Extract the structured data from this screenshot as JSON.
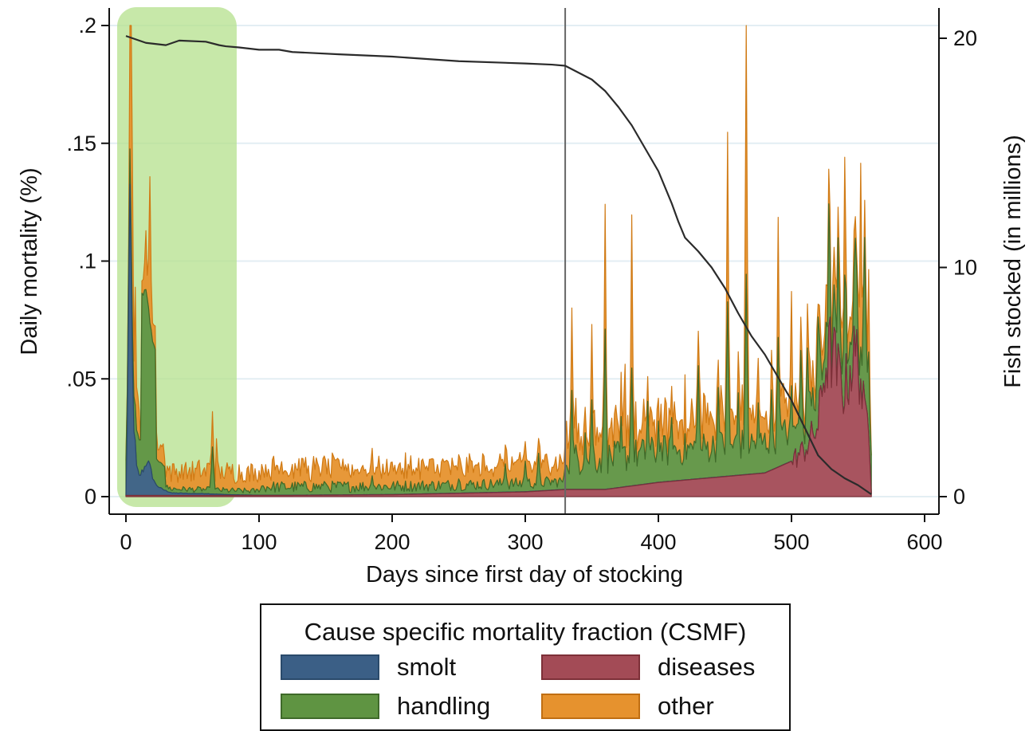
{
  "chart_data": {
    "type": "area",
    "xlabel": "Days since first day of stocking",
    "ylabel": "Daily mortality (%)",
    "y2label": "Fish stocked (in millions)",
    "xlim": [
      0,
      600
    ],
    "ylim": [
      0,
      0.2
    ],
    "y2lim": [
      0,
      20
    ],
    "xticks": [
      0,
      100,
      200,
      300,
      400,
      500,
      600
    ],
    "xtick_labels": [
      "0",
      "100",
      "200",
      "300",
      "400",
      "500",
      "600"
    ],
    "yticks": [
      0,
      0.05,
      0.1,
      0.15,
      0.2
    ],
    "ytick_labels": [
      "0",
      ".05",
      ".1",
      ".15",
      ".2"
    ],
    "y2ticks": [
      0,
      10,
      20
    ],
    "y2tick_labels": [
      "0",
      "10",
      "20"
    ],
    "grid": true,
    "stacked": true,
    "colors": {
      "smolt": "#3b5f86",
      "handling": "#5f9442",
      "diseases": "#a34b56",
      "other": "#e6922e",
      "fish_line": "#2b2b2b",
      "highlight": "#b4e08c",
      "vline": "#666666"
    },
    "highlight_range": [
      0,
      82
    ],
    "vline_x": 330,
    "smolt_peaks": [
      [
        0,
        0.0
      ],
      [
        1,
        0.03
      ],
      [
        2,
        0.08
      ],
      [
        3,
        0.115
      ],
      [
        4,
        0.09
      ],
      [
        5,
        0.05
      ],
      [
        6,
        0.03
      ],
      [
        8,
        0.012
      ],
      [
        10,
        0.008
      ],
      [
        12,
        0.01
      ],
      [
        14,
        0.012
      ],
      [
        16,
        0.015
      ],
      [
        18,
        0.012
      ],
      [
        20,
        0.008
      ],
      [
        22,
        0.005
      ],
      [
        26,
        0.003
      ],
      [
        30,
        0.002
      ],
      [
        35,
        0.001
      ],
      [
        40,
        0.001
      ],
      [
        50,
        0.0008
      ],
      [
        60,
        0.0008
      ],
      [
        70,
        0.0005
      ],
      [
        80,
        0.0003
      ],
      [
        100,
        0.0001
      ],
      [
        560,
        0.0001
      ]
    ],
    "handling_peaks": [
      [
        15,
        0.075
      ],
      [
        18,
        0.06
      ],
      [
        65,
        0.02
      ],
      [
        150,
        0.005
      ],
      [
        185,
        0.008
      ],
      [
        250,
        0.006
      ],
      [
        285,
        0.012
      ],
      [
        300,
        0.013
      ],
      [
        310,
        0.016
      ],
      [
        335,
        0.042
      ],
      [
        345,
        0.024
      ],
      [
        350,
        0.038
      ],
      [
        360,
        0.068
      ],
      [
        372,
        0.03
      ],
      [
        380,
        0.05
      ],
      [
        392,
        0.035
      ],
      [
        400,
        0.026
      ],
      [
        410,
        0.027
      ],
      [
        430,
        0.048
      ],
      [
        445,
        0.038
      ],
      [
        452,
        0.074
      ],
      [
        460,
        0.035
      ],
      [
        466,
        0.085
      ],
      [
        475,
        0.03
      ],
      [
        485,
        0.034
      ],
      [
        490,
        0.055
      ],
      [
        500,
        0.032
      ],
      [
        507,
        0.04
      ],
      [
        512,
        0.045
      ],
      [
        520,
        0.048
      ],
      [
        528,
        0.052
      ],
      [
        535,
        0.045
      ],
      [
        540,
        0.055
      ],
      [
        548,
        0.05
      ],
      [
        555,
        0.068
      ],
      [
        558,
        0.035
      ]
    ],
    "diseases_peaks": [
      [
        120,
        0.0005
      ],
      [
        200,
        0.0008
      ],
      [
        300,
        0.002
      ],
      [
        330,
        0.003
      ],
      [
        360,
        0.003
      ],
      [
        400,
        0.006
      ],
      [
        440,
        0.008
      ],
      [
        480,
        0.01
      ],
      [
        500,
        0.015
      ],
      [
        510,
        0.02
      ],
      [
        520,
        0.03
      ],
      [
        525,
        0.055
      ],
      [
        530,
        0.062
      ],
      [
        535,
        0.052
      ],
      [
        540,
        0.045
      ],
      [
        545,
        0.057
      ],
      [
        550,
        0.06
      ],
      [
        555,
        0.033
      ],
      [
        558,
        0.035
      ],
      [
        560,
        0.002
      ]
    ],
    "other_peaks": [
      [
        4,
        0.171
      ],
      [
        7,
        0.07
      ],
      [
        12,
        0.02
      ],
      [
        15,
        0.045
      ],
      [
        18,
        0.082
      ],
      [
        22,
        0.03
      ],
      [
        30,
        0.012
      ],
      [
        42,
        0.018
      ],
      [
        62,
        0.03
      ],
      [
        65,
        0.035
      ],
      [
        68,
        0.041
      ],
      [
        72,
        0.02
      ],
      [
        100,
        0.012
      ],
      [
        150,
        0.026
      ],
      [
        185,
        0.023
      ],
      [
        220,
        0.015
      ],
      [
        280,
        0.02
      ],
      [
        310,
        0.025
      ],
      [
        335,
        0.055
      ],
      [
        350,
        0.052
      ],
      [
        360,
        0.073
      ],
      [
        375,
        0.055
      ],
      [
        380,
        0.085
      ],
      [
        420,
        0.045
      ],
      [
        452,
        0.092
      ],
      [
        466,
        0.13
      ],
      [
        490,
        0.071
      ],
      [
        500,
        0.06
      ],
      [
        540,
        0.07
      ],
      [
        552,
        0.098
      ],
      [
        558,
        0.055
      ],
      [
        560,
        0.002
      ]
    ],
    "series": [
      {
        "name": "smolt"
      },
      {
        "name": "handling"
      },
      {
        "name": "diseases"
      },
      {
        "name": "other"
      }
    ],
    "fish_stocked": {
      "x": [
        0,
        5,
        15,
        30,
        40,
        60,
        70,
        75,
        85,
        100,
        115,
        125,
        160,
        200,
        250,
        300,
        320,
        330,
        340,
        350,
        360,
        370,
        380,
        390,
        400,
        410,
        415,
        420,
        430,
        440,
        450,
        460,
        470,
        480,
        490,
        500,
        510,
        520,
        530,
        540,
        550,
        560
      ],
      "y": [
        20.1,
        20.0,
        19.8,
        19.7,
        19.9,
        19.85,
        19.7,
        19.65,
        19.6,
        19.5,
        19.5,
        19.4,
        19.3,
        19.2,
        19.0,
        18.9,
        18.85,
        18.8,
        18.5,
        18.2,
        17.7,
        17.0,
        16.2,
        15.2,
        14.2,
        12.8,
        12.0,
        11.3,
        10.7,
        10.0,
        9.1,
        8.0,
        7.0,
        6.2,
        5.2,
        4.2,
        3.0,
        1.8,
        1.2,
        0.8,
        0.5,
        0.1
      ]
    }
  },
  "legend": {
    "title": "Cause specific mortality fraction (CSMF)",
    "items": [
      {
        "label": "smolt",
        "fill": "#3b5f86",
        "border": "#2a4a6b"
      },
      {
        "label": "diseases",
        "fill": "#a34b56",
        "border": "#7d3038"
      },
      {
        "label": "handling",
        "fill": "#5f9442",
        "border": "#3f6a2a"
      },
      {
        "label": "other",
        "fill": "#e6922e",
        "border": "#c06e12"
      }
    ]
  }
}
